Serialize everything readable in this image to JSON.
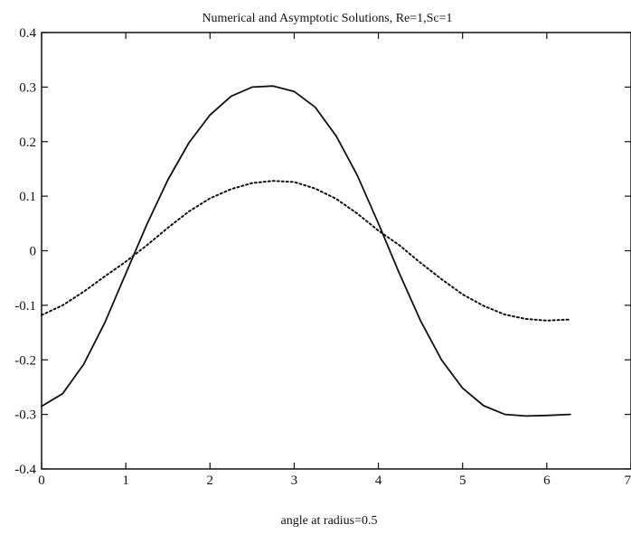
{
  "chart_data": {
    "type": "line",
    "title": "Numerical and Asymptotic Solutions, Re=1,Sc=1",
    "xlabel": "angle at radius=0.5",
    "ylabel": "",
    "xlim": [
      0,
      7
    ],
    "ylim": [
      -0.4,
      0.4
    ],
    "x_ticks": [
      0,
      1,
      2,
      3,
      4,
      5,
      6,
      7
    ],
    "x_tick_labels": [
      "0",
      "1",
      "2",
      "3",
      "4",
      "5",
      "6",
      "7"
    ],
    "y_ticks": [
      0.4,
      0.3,
      0.2,
      0.1,
      0,
      -0.1,
      -0.2,
      -0.3,
      -0.4
    ],
    "y_tick_labels": [
      "0.4",
      "0.3",
      "0.2",
      "0.1",
      "0",
      "-0.1",
      "-0.2",
      "-0.3",
      "-0.4"
    ],
    "grid": false,
    "series": [
      {
        "style": "solid",
        "color": "#111111",
        "x": [
          0,
          0.25,
          0.5,
          0.75,
          1.0,
          1.25,
          1.5,
          1.75,
          2.0,
          2.25,
          2.5,
          2.75,
          3.0,
          3.25,
          3.5,
          3.75,
          4.0,
          4.25,
          4.5,
          4.75,
          5.0,
          5.25,
          5.5,
          5.75,
          6.0,
          6.28
        ],
        "y": [
          -0.285,
          -0.262,
          -0.208,
          -0.132,
          -0.042,
          0.048,
          0.13,
          0.198,
          0.249,
          0.283,
          0.3,
          0.302,
          0.292,
          0.263,
          0.21,
          0.138,
          0.05,
          -0.042,
          -0.128,
          -0.2,
          -0.252,
          -0.284,
          -0.3,
          -0.303,
          -0.302,
          -0.3
        ]
      },
      {
        "style": "dotted",
        "color": "#111111",
        "x": [
          0,
          0.25,
          0.5,
          0.75,
          1.0,
          1.25,
          1.5,
          1.75,
          2.0,
          2.25,
          2.5,
          2.75,
          3.0,
          3.25,
          3.5,
          3.75,
          4.0,
          4.25,
          4.5,
          4.75,
          5.0,
          5.25,
          5.5,
          5.75,
          6.0,
          6.28
        ],
        "y": [
          -0.118,
          -0.1,
          -0.075,
          -0.047,
          -0.02,
          0.01,
          0.042,
          0.072,
          0.096,
          0.113,
          0.124,
          0.128,
          0.126,
          0.114,
          0.095,
          0.068,
          0.037,
          0.01,
          -0.022,
          -0.052,
          -0.08,
          -0.101,
          -0.117,
          -0.125,
          -0.128,
          -0.126
        ]
      }
    ]
  }
}
